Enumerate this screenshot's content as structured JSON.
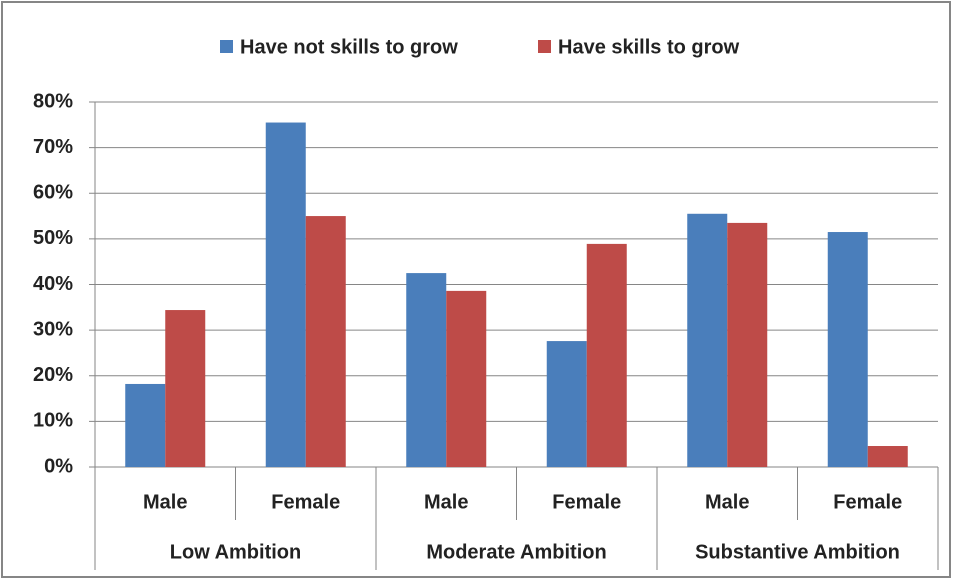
{
  "chart_data": {
    "type": "bar",
    "categories": [
      "Male",
      "Female",
      "Male",
      "Female",
      "Male",
      "Female"
    ],
    "groups": [
      "Low Ambition",
      "Moderate Ambition",
      "Substantive Ambition"
    ],
    "series": [
      {
        "name": "Have not skills to grow",
        "color": "#4a7ebb",
        "values": [
          18.2,
          75.5,
          42.5,
          27.6,
          55.5,
          51.5
        ]
      },
      {
        "name": "Have skills to grow",
        "color": "#be4b48",
        "values": [
          34.4,
          55,
          38.6,
          48.9,
          53.5,
          4.6
        ]
      }
    ],
    "ylim": [
      0,
      80
    ],
    "yticks": [
      {
        "value": 0,
        "label": "0%"
      },
      {
        "value": 10,
        "label": "10%"
      },
      {
        "value": 20,
        "label": "20%"
      },
      {
        "value": 30,
        "label": "30%"
      },
      {
        "value": 40,
        "label": "40%"
      },
      {
        "value": 50,
        "label": "50%"
      },
      {
        "value": 60,
        "label": "60%"
      },
      {
        "value": 70,
        "label": "70%"
      },
      {
        "value": 80,
        "label": "80%"
      }
    ],
    "grid": true,
    "legend": "top"
  }
}
